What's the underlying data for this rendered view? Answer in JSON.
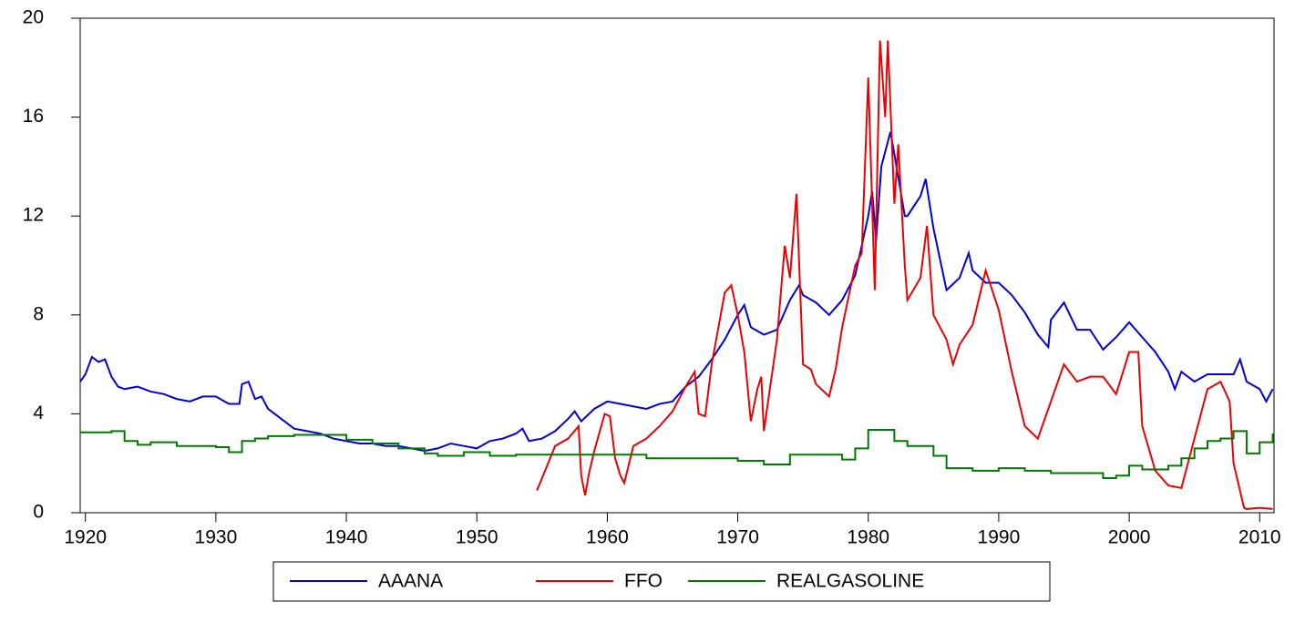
{
  "chart_data": {
    "type": "line",
    "xlim": [
      1919.6,
      2011.1
    ],
    "xticks": [
      1920,
      1930,
      1940,
      1950,
      1960,
      1970,
      1980,
      1990,
      2000,
      2010
    ],
    "ylim": [
      0,
      20
    ],
    "yticks": [
      0,
      4,
      8,
      12,
      16,
      20
    ],
    "legend": "bottom",
    "series": [
      {
        "name": "AAANA",
        "color": "#0000dd",
        "x": [
          1919.6,
          1920,
          1920.5,
          1921,
          1921.5,
          1922,
          1922.5,
          1923,
          1924,
          1925,
          1926,
          1927,
          1928,
          1929,
          1930,
          1931,
          1931.8,
          1932,
          1932.5,
          1933,
          1933.5,
          1934,
          1935,
          1936,
          1937,
          1938,
          1939,
          1940,
          1941,
          1942,
          1943,
          1944,
          1945,
          1946,
          1947,
          1948,
          1949,
          1950,
          1951,
          1952,
          1953,
          1953.5,
          1954,
          1955,
          1956,
          1957,
          1957.5,
          1958,
          1959,
          1960,
          1961,
          1962,
          1963,
          1964,
          1965,
          1966,
          1967,
          1968,
          1969,
          1970,
          1970.5,
          1971,
          1972,
          1973,
          1974,
          1974.7,
          1975,
          1976,
          1977,
          1978,
          1979,
          1980,
          1980.3,
          1980.6,
          1981,
          1981.7,
          1982,
          1982.8,
          1983,
          1984,
          1984.4,
          1985,
          1986,
          1987,
          1987.7,
          1988,
          1989,
          1990,
          1991,
          1992,
          1993,
          1993.8,
          1994,
          1995,
          1996,
          1997,
          1998,
          1999,
          2000,
          2001,
          2002,
          2003,
          2003.5,
          2004,
          2005,
          2006,
          2007,
          2008,
          2008.5,
          2009,
          2010,
          2010.5,
          2011
        ],
        "values": [
          5.3,
          5.6,
          6.3,
          6.1,
          6.2,
          5.5,
          5.1,
          5.0,
          5.1,
          4.9,
          4.8,
          4.6,
          4.5,
          4.7,
          4.7,
          4.4,
          4.4,
          5.2,
          5.3,
          4.6,
          4.7,
          4.2,
          3.8,
          3.4,
          3.3,
          3.2,
          3.0,
          2.9,
          2.8,
          2.8,
          2.7,
          2.7,
          2.6,
          2.5,
          2.6,
          2.8,
          2.7,
          2.6,
          2.9,
          3.0,
          3.2,
          3.4,
          2.9,
          3.0,
          3.3,
          3.8,
          4.1,
          3.7,
          4.2,
          4.5,
          4.4,
          4.3,
          4.2,
          4.4,
          4.5,
          5.1,
          5.5,
          6.2,
          7.0,
          8.0,
          8.4,
          7.5,
          7.2,
          7.4,
          8.6,
          9.2,
          8.8,
          8.5,
          8.0,
          8.6,
          9.6,
          12.0,
          13.0,
          11.0,
          14.0,
          15.4,
          14.5,
          12.0,
          12.0,
          12.8,
          13.5,
          11.5,
          9.0,
          9.5,
          10.5,
          9.8,
          9.3,
          9.3,
          8.8,
          8.1,
          7.2,
          6.7,
          7.8,
          8.5,
          7.4,
          7.4,
          6.6,
          7.1,
          7.7,
          7.1,
          6.5,
          5.7,
          5.0,
          5.7,
          5.3,
          5.6,
          5.6,
          5.6,
          6.2,
          5.3,
          5.0,
          4.5,
          5.0
        ]
      },
      {
        "name": "FFO",
        "color": "#ee0000",
        "x": [
          1954.6,
          1955,
          1956,
          1957,
          1957.8,
          1958,
          1958.3,
          1958.6,
          1959,
          1959.8,
          1960.2,
          1960.6,
          1961,
          1961.3,
          1962,
          1963,
          1964,
          1965,
          1966,
          1966.7,
          1967,
          1967.5,
          1968,
          1969,
          1969.5,
          1970,
          1970.5,
          1971,
          1971.5,
          1971.8,
          1972,
          1973,
          1973.6,
          1974,
          1974.5,
          1975,
          1975.6,
          1976,
          1977,
          1977.5,
          1978,
          1979,
          1979.5,
          1980,
          1980.5,
          1980.9,
          1981.3,
          1981.5,
          1982,
          1982.3,
          1982.8,
          1983,
          1984,
          1984.5,
          1985,
          1986,
          1986.5,
          1987,
          1988,
          1989,
          1990,
          1991,
          1992,
          1993,
          1994,
          1995,
          1996,
          1997,
          1998,
          1999,
          2000,
          2000.7,
          2001,
          2002,
          2003,
          2004,
          2005,
          2006,
          2007,
          2007.7,
          2008,
          2008.8,
          2009,
          2010,
          2011
        ],
        "values": [
          0.9,
          1.4,
          2.7,
          3.0,
          3.5,
          1.5,
          0.7,
          1.6,
          2.5,
          4.0,
          3.9,
          2.2,
          1.5,
          1.2,
          2.7,
          3.0,
          3.5,
          4.1,
          5.1,
          5.7,
          4.0,
          3.9,
          6.0,
          8.9,
          9.2,
          8.0,
          6.5,
          3.7,
          5.0,
          5.5,
          3.3,
          7.0,
          10.8,
          9.5,
          12.9,
          6.0,
          5.8,
          5.2,
          4.7,
          5.8,
          7.5,
          10.0,
          10.5,
          17.6,
          9.0,
          19.1,
          16.0,
          19.1,
          12.5,
          14.9,
          10.0,
          8.6,
          9.5,
          11.6,
          8.0,
          7.0,
          6.0,
          6.8,
          7.6,
          9.8,
          8.2,
          5.7,
          3.5,
          3.0,
          4.5,
          6.0,
          5.3,
          5.5,
          5.5,
          4.8,
          6.5,
          6.5,
          3.5,
          1.7,
          1.1,
          1.0,
          3.0,
          5.0,
          5.3,
          4.5,
          2.0,
          0.2,
          0.15,
          0.2,
          0.15
        ]
      },
      {
        "name": "REALGASOLINE",
        "color": "#007a00",
        "drawstyle": "steps-post",
        "x": [
          1919.6,
          1922,
          1923,
          1924,
          1925,
          1927,
          1930,
          1931,
          1932,
          1933,
          1934,
          1936,
          1940,
          1942,
          1944,
          1946,
          1947,
          1949,
          1951,
          1953,
          1960,
          1963,
          1970,
          1972,
          1974,
          1978,
          1979,
          1980,
          1982,
          1983,
          1985,
          1986,
          1988,
          1990,
          1992,
          1994,
          1997,
          1998,
          1999,
          2000,
          2001,
          2003,
          2004,
          2005,
          2006,
          2007,
          2008,
          2009,
          2010,
          2011
        ],
        "values": [
          3.25,
          3.3,
          2.9,
          2.75,
          2.85,
          2.7,
          2.65,
          2.45,
          2.9,
          3.0,
          3.1,
          3.15,
          2.95,
          2.8,
          2.6,
          2.4,
          2.3,
          2.45,
          2.3,
          2.35,
          2.35,
          2.2,
          2.1,
          1.95,
          2.35,
          2.15,
          2.6,
          3.35,
          2.9,
          2.7,
          2.3,
          1.8,
          1.7,
          1.8,
          1.7,
          1.6,
          1.6,
          1.4,
          1.5,
          1.9,
          1.75,
          1.9,
          2.2,
          2.6,
          2.9,
          3.0,
          3.3,
          2.4,
          2.85,
          3.2
        ]
      }
    ]
  }
}
